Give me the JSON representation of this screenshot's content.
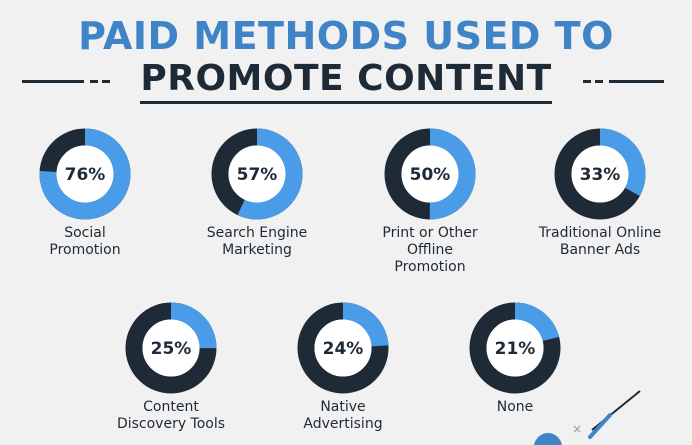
{
  "title": {
    "line1": "PAID METHODS USED TO",
    "line2": "PROMOTE CONTENT"
  },
  "colors": {
    "accent_blue": "#4a9be8",
    "dark_navy": "#1e2a36",
    "title_blue": "#3e84c6",
    "background": "#f1f1f1"
  },
  "chart_data": {
    "type": "donut",
    "title": "PAID METHODS USED TO PROMOTE CONTENT",
    "unit": "%",
    "categories": [
      "Social Promotion",
      "Search Engine Marketing",
      "Print or Other Offline Promotion",
      "Traditional Online Banner Ads",
      "Content Discovery Tools",
      "Native Advertising",
      "None"
    ],
    "values": [
      76,
      57,
      50,
      33,
      25,
      24,
      21
    ],
    "labels": [
      "76%",
      "57%",
      "50%",
      "33%",
      "25%",
      "24%",
      "21%"
    ]
  }
}
